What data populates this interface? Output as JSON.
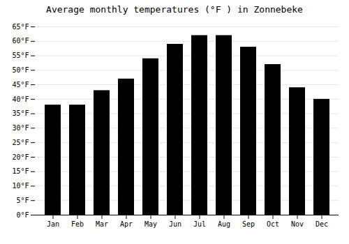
{
  "chart_data": {
    "type": "bar",
    "title": "Average monthly temperatures (°F ) in Zonnebeke",
    "categories": [
      "Jan",
      "Feb",
      "Mar",
      "Apr",
      "May",
      "Jun",
      "Jul",
      "Aug",
      "Sep",
      "Oct",
      "Nov",
      "Dec"
    ],
    "values": [
      38,
      38,
      43,
      47,
      54,
      59,
      62,
      62,
      58,
      52,
      44,
      40
    ],
    "ylim": [
      0,
      65
    ],
    "yticks": [
      {
        "value": 0,
        "label": "0°F"
      },
      {
        "value": 5,
        "label": "5°F"
      },
      {
        "value": 10,
        "label": "10°F"
      },
      {
        "value": 15,
        "label": "15°F"
      },
      {
        "value": 20,
        "label": "20°F"
      },
      {
        "value": 25,
        "label": "25°F"
      },
      {
        "value": 30,
        "label": "30°F"
      },
      {
        "value": 35,
        "label": "35°F"
      },
      {
        "value": 40,
        "label": "40°F"
      },
      {
        "value": 45,
        "label": "45°F"
      },
      {
        "value": 50,
        "label": "50°F"
      },
      {
        "value": 55,
        "label": "55°F"
      },
      {
        "value": 60,
        "label": "60°F"
      },
      {
        "value": 65,
        "label": "65°F"
      }
    ],
    "grid": true
  }
}
